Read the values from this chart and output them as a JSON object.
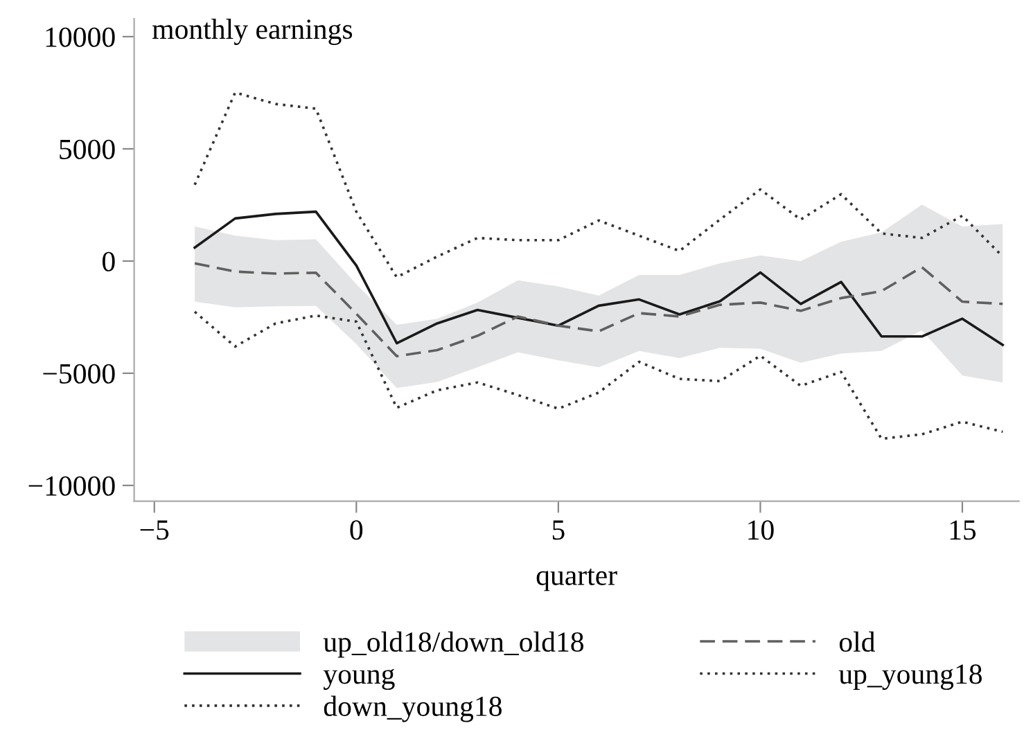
{
  "chart_data": {
    "type": "line",
    "ylabel": "monthly earnings",
    "xlabel": "quarter",
    "x": [
      -4,
      -3,
      -2,
      -1,
      0,
      1,
      2,
      3,
      4,
      5,
      6,
      7,
      8,
      9,
      10,
      11,
      12,
      13,
      14,
      15,
      16
    ],
    "xlim": [
      -5.5,
      16.4
    ],
    "xticks": [
      {
        "value": -5,
        "label": "−5"
      },
      0,
      5,
      10,
      15
    ],
    "ylim": [
      -10700,
      10800
    ],
    "yticks": [
      {
        "value": -10000,
        "label": "−10000"
      },
      {
        "value": -5000,
        "label": "−5000"
      },
      0,
      5000,
      10000
    ],
    "grid": false,
    "legend": "bottom",
    "marker": "none",
    "series": [
      {
        "name": "up_old18/down_old18",
        "type": "line",
        "color": "#e3e4e6",
        "values": [
          null,
          null,
          null,
          null,
          null,
          null,
          null,
          null,
          null,
          null,
          null,
          null,
          null,
          null,
          null,
          null,
          null,
          null,
          null,
          null,
          null
        ],
        "lower": [
          -1810,
          -2060,
          -2020,
          -2000,
          -3700,
          -5660,
          -5390,
          -4730,
          -4070,
          -4420,
          -4730,
          -4010,
          -4320,
          -3870,
          -3910,
          -4530,
          -4120,
          -4010,
          -3090,
          -5100,
          -5410
        ],
        "upper": [
          1540,
          1130,
          930,
          970,
          -1030,
          -2840,
          -2570,
          -1850,
          -860,
          -1130,
          -1540,
          -620,
          -620,
          -100,
          250,
          0,
          860,
          1280,
          2510,
          1540,
          1650
        ]
      },
      {
        "name": "young",
        "color": "#1a1a1a",
        "line_style": "solid",
        "values": [
          600,
          1900,
          2100,
          2200,
          -200,
          -3660,
          -2780,
          -2180,
          -2530,
          -2880,
          -1990,
          -1710,
          -2380,
          -1790,
          -510,
          -1910,
          -930,
          -3360,
          -3360,
          -2570,
          -3740
        ]
      },
      {
        "name": "down_young18",
        "color": "#333333",
        "line_style": "dotted",
        "values": [
          -2260,
          -3810,
          -2780,
          -2430,
          -2700,
          -6540,
          -5760,
          -5410,
          -5970,
          -6580,
          -5860,
          -4490,
          -5250,
          -5350,
          -4220,
          -5560,
          -4940,
          -7920,
          -7720,
          -7160,
          -7610
        ]
      },
      {
        "name": "old",
        "color": "#606060",
        "line_style": "dashed",
        "values": [
          -100,
          -470,
          -560,
          -520,
          -2350,
          -4240,
          -3970,
          -3330,
          -2470,
          -2880,
          -3130,
          -2320,
          -2470,
          -1950,
          -1850,
          -2220,
          -1650,
          -1340,
          -270,
          -1810,
          -1910
        ]
      },
      {
        "name": "up_young18",
        "color": "#333333",
        "line_style": "dotted",
        "values": [
          3400,
          7510,
          7000,
          6790,
          2200,
          -720,
          200,
          1030,
          930,
          930,
          1810,
          1130,
          450,
          1850,
          3190,
          1850,
          2980,
          1230,
          1030,
          2020,
          200
        ]
      }
    ]
  }
}
